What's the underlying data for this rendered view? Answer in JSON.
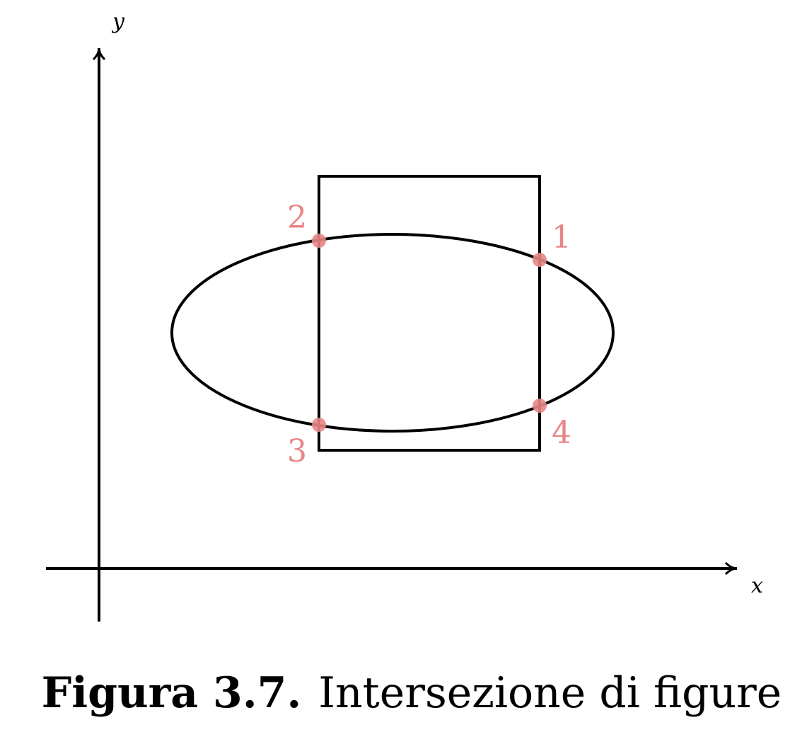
{
  "axes": {
    "x_label": "x",
    "y_label": "y"
  },
  "colors": {
    "stroke": "#000000",
    "intersection": "#e88585"
  },
  "intersections": [
    {
      "label": "1"
    },
    {
      "label": "2"
    },
    {
      "label": "3"
    },
    {
      "label": "4"
    }
  ],
  "caption": {
    "label": "Figura 3.7.",
    "text": "Intersezione di figure"
  }
}
